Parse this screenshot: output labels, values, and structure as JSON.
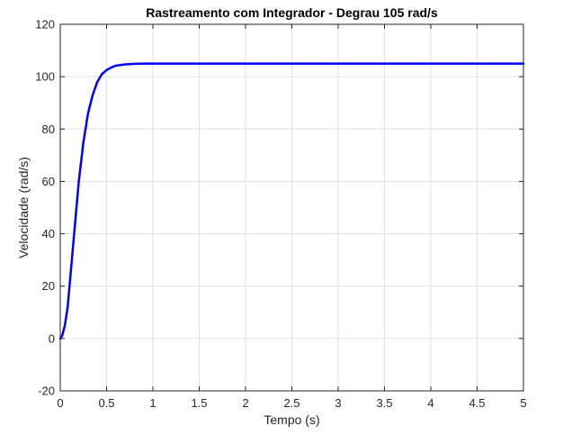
{
  "chart_data": {
    "type": "line",
    "title": "Rastreamento com Integrador - Degrau 105 rad/s",
    "xlabel": "Tempo (s)",
    "ylabel": "Velocidade (rad/s)",
    "xlim": [
      0,
      5
    ],
    "ylim": [
      -20,
      120
    ],
    "xticks": [
      0,
      0.5,
      1,
      1.5,
      2,
      2.5,
      3,
      3.5,
      4,
      4.5,
      5
    ],
    "xtick_labels": [
      "0",
      "0.5",
      "1",
      "1.5",
      "2",
      "2.5",
      "3",
      "3.5",
      "4",
      "4.5",
      "5"
    ],
    "yticks": [
      -20,
      0,
      20,
      40,
      60,
      80,
      100,
      120
    ],
    "ytick_labels": [
      "-20",
      "0",
      "20",
      "40",
      "60",
      "80",
      "100",
      "120"
    ],
    "grid": true,
    "legend": "none",
    "series": [
      {
        "color": "#0000ff",
        "x": [
          0,
          0.02,
          0.05,
          0.08,
          0.1,
          0.12,
          0.15,
          0.18,
          0.2,
          0.25,
          0.3,
          0.35,
          0.4,
          0.45,
          0.5,
          0.55,
          0.6,
          0.7,
          0.8,
          0.9,
          1.0,
          1.5,
          2.0,
          2.5,
          3.0,
          3.5,
          4.0,
          4.5,
          5.0
        ],
        "y": [
          0,
          1,
          5,
          12,
          20,
          28,
          40,
          52,
          60,
          75,
          86,
          93,
          98,
          101,
          102.5,
          103.5,
          104.2,
          104.7,
          104.9,
          105,
          105,
          105,
          105,
          105,
          105,
          105,
          105,
          105,
          105
        ]
      }
    ]
  }
}
